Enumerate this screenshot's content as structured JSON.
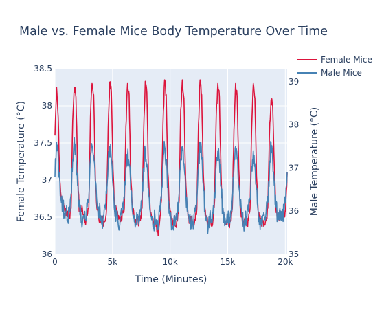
{
  "chart_data": {
    "type": "line",
    "title": "Male vs. Female Mice Body Temperature Over Time",
    "xlabel": "Time (Minutes)",
    "ylabel_left": "Female Temperature (°C)",
    "ylabel_right": "Male Temperature (°C)",
    "xlim": [
      0,
      20160
    ],
    "ylim_left": [
      36,
      38.5
    ],
    "ylim_right": [
      35,
      39.3
    ],
    "x_ticks": [
      {
        "value": 0,
        "label": "0"
      },
      {
        "value": 5000,
        "label": "5k"
      },
      {
        "value": 10000,
        "label": "10k"
      },
      {
        "value": 15000,
        "label": "15k"
      },
      {
        "value": 20000,
        "label": "20k"
      }
    ],
    "y_left_ticks": [
      {
        "value": 36,
        "label": "36"
      },
      {
        "value": 36.5,
        "label": "36.5"
      },
      {
        "value": 37,
        "label": "37"
      },
      {
        "value": 37.5,
        "label": "37.5"
      },
      {
        "value": 38,
        "label": "38"
      },
      {
        "value": 38.5,
        "label": "38.5"
      }
    ],
    "y_right_ticks": [
      {
        "value": 35,
        "label": "35"
      },
      {
        "value": 36,
        "label": "36"
      },
      {
        "value": 37,
        "label": "37"
      },
      {
        "value": 38,
        "label": "38"
      },
      {
        "value": 39,
        "label": "39"
      }
    ],
    "grid": true,
    "legend_position": "top-right",
    "series": [
      {
        "name": "Female Mice",
        "axis": "left",
        "color": "#dc143c",
        "x": [
          0,
          140,
          280,
          420,
          560,
          700,
          840,
          980,
          1120,
          1260,
          1400,
          1540,
          1680,
          1820,
          1960,
          2100,
          2240,
          2380,
          2520,
          2660,
          2800,
          2940,
          3080,
          3220,
          3360,
          3500,
          3640,
          3780,
          3920,
          4060,
          4200,
          4340,
          4480,
          4620,
          4760,
          4900,
          5040,
          5180,
          5320,
          5460,
          5600,
          5740,
          5880,
          6020,
          6160,
          6300,
          6440,
          6580,
          6720,
          6860,
          7000,
          7140,
          7280,
          7420,
          7560,
          7700,
          7840,
          7980,
          8120,
          8260,
          8400,
          8540,
          8680,
          8820,
          8960,
          9100,
          9240,
          9380,
          9520,
          9660,
          9800,
          9940,
          10080,
          10220,
          10360,
          10500,
          10640,
          10780,
          10920,
          11060,
          11200,
          11340,
          11480,
          11620,
          11760,
          11900,
          12040,
          12180,
          12320,
          12460,
          12600,
          12740,
          12880,
          13020,
          13160,
          13300,
          13440,
          13580,
          13720,
          13860,
          14000,
          14140,
          14280,
          14420,
          14560,
          14700,
          14840,
          14980,
          15120,
          15260,
          15400,
          15540,
          15680,
          15820,
          15960,
          16100,
          16240,
          16380,
          16520,
          16660,
          16800,
          16940,
          17080,
          17220,
          17360,
          17500,
          17640,
          17780,
          17920,
          18060,
          18200,
          18340,
          18480,
          18620,
          18760,
          18900,
          19040,
          19180,
          19320,
          19460,
          19600,
          19740,
          19880,
          20020,
          20160
        ],
        "values": [
          37.6,
          38.25,
          37.85,
          37.0,
          36.72,
          36.72,
          36.62,
          36.52,
          36.58,
          36.48,
          36.62,
          37.8,
          38.25,
          38.12,
          37.22,
          36.58,
          36.62,
          36.62,
          36.52,
          36.4,
          36.52,
          36.62,
          37.85,
          38.3,
          38.15,
          37.08,
          36.62,
          36.55,
          36.42,
          36.5,
          36.38,
          36.45,
          36.62,
          37.7,
          38.32,
          38.18,
          37.15,
          36.58,
          36.62,
          36.52,
          36.48,
          36.46,
          36.56,
          36.62,
          37.72,
          38.3,
          38.15,
          37.05,
          36.62,
          36.52,
          36.4,
          36.5,
          36.38,
          36.46,
          36.62,
          37.65,
          38.33,
          38.18,
          37.05,
          36.62,
          36.5,
          36.4,
          36.5,
          36.38,
          36.25,
          36.46,
          36.72,
          37.75,
          38.35,
          38.15,
          37.1,
          36.62,
          36.5,
          36.4,
          36.5,
          36.38,
          36.46,
          36.72,
          37.95,
          38.35,
          38.1,
          37.05,
          36.62,
          36.5,
          36.4,
          36.5,
          36.38,
          36.46,
          36.62,
          37.75,
          38.35,
          38.15,
          37.1,
          36.62,
          36.5,
          36.4,
          36.5,
          36.38,
          36.46,
          36.72,
          37.85,
          38.3,
          38.12,
          37.1,
          36.58,
          36.5,
          36.4,
          36.5,
          36.38,
          36.46,
          36.62,
          37.68,
          38.3,
          38.12,
          37.15,
          36.58,
          36.5,
          36.4,
          36.5,
          36.38,
          36.46,
          36.62,
          37.7,
          38.3,
          38.1,
          37.05,
          36.58,
          36.5,
          36.4,
          36.46,
          36.4,
          36.46,
          36.62,
          37.6,
          38.08,
          38.0,
          37.2,
          36.62,
          36.5,
          36.46,
          36.58,
          36.48,
          36.52,
          36.58,
          37.1
        ]
      },
      {
        "name": "Male Mice",
        "axis": "right",
        "color": "#4682b4",
        "x": [
          0,
          140,
          280,
          420,
          560,
          700,
          840,
          980,
          1120,
          1260,
          1400,
          1540,
          1680,
          1820,
          1960,
          2100,
          2240,
          2380,
          2520,
          2660,
          2800,
          2940,
          3080,
          3220,
          3360,
          3500,
          3640,
          3780,
          3920,
          4060,
          4200,
          4340,
          4480,
          4620,
          4760,
          4900,
          5040,
          5180,
          5320,
          5460,
          5600,
          5740,
          5880,
          6020,
          6160,
          6300,
          6440,
          6580,
          6720,
          6860,
          7000,
          7140,
          7280,
          7420,
          7560,
          7700,
          7840,
          7980,
          8120,
          8260,
          8400,
          8540,
          8680,
          8820,
          8960,
          9100,
          9240,
          9380,
          9520,
          9660,
          9800,
          9940,
          10080,
          10220,
          10360,
          10500,
          10640,
          10780,
          10920,
          11060,
          11200,
          11340,
          11480,
          11620,
          11760,
          11900,
          12040,
          12180,
          12320,
          12460,
          12600,
          12740,
          12880,
          13020,
          13160,
          13300,
          13440,
          13580,
          13720,
          13860,
          14000,
          14140,
          14280,
          14420,
          14560,
          14700,
          14840,
          14980,
          15120,
          15260,
          15400,
          15540,
          15680,
          15820,
          15960,
          16100,
          16240,
          16380,
          16520,
          16660,
          16800,
          16940,
          17080,
          17220,
          17360,
          17500,
          17640,
          17780,
          17920,
          18060,
          18200,
          18340,
          18480,
          18620,
          18760,
          18900,
          19040,
          19180,
          19320,
          19460,
          19600,
          19740,
          19880,
          20020,
          20160
        ],
        "values": [
          36.8,
          37.6,
          37.3,
          36.7,
          36.2,
          36.1,
          35.9,
          36.0,
          35.8,
          36.1,
          36.4,
          37.2,
          37.7,
          37.3,
          36.6,
          36.1,
          36.0,
          35.7,
          35.9,
          35.8,
          36.1,
          36.3,
          37.2,
          37.5,
          37.3,
          36.7,
          36.2,
          35.9,
          36.0,
          35.7,
          35.9,
          36.1,
          36.4,
          37.1,
          37.5,
          37.2,
          36.6,
          36.0,
          35.9,
          35.8,
          35.6,
          36.0,
          36.1,
          36.3,
          37.0,
          37.3,
          37.1,
          36.5,
          36.0,
          35.9,
          35.7,
          35.9,
          35.7,
          36.0,
          36.3,
          37.0,
          37.4,
          37.1,
          36.5,
          36.0,
          35.8,
          35.6,
          35.9,
          35.8,
          35.6,
          36.0,
          36.3,
          37.1,
          37.5,
          37.2,
          36.6,
          36.0,
          35.8,
          35.6,
          35.9,
          35.8,
          36.0,
          36.4,
          37.2,
          37.4,
          37.1,
          36.5,
          36.0,
          35.9,
          35.7,
          35.9,
          35.7,
          36.0,
          36.3,
          37.0,
          37.6,
          37.2,
          36.6,
          36.0,
          35.8,
          35.6,
          35.9,
          35.8,
          36.0,
          36.3,
          37.1,
          37.4,
          37.2,
          36.6,
          36.0,
          35.8,
          35.7,
          35.9,
          35.8,
          36.0,
          36.3,
          37.0,
          37.5,
          37.2,
          36.6,
          36.1,
          35.9,
          35.7,
          35.9,
          35.8,
          36.0,
          36.3,
          37.0,
          37.4,
          37.1,
          36.5,
          36.0,
          35.8,
          35.7,
          35.9,
          35.8,
          36.0,
          36.2,
          36.9,
          37.6,
          37.2,
          36.6,
          36.1,
          35.9,
          35.8,
          36.0,
          35.8,
          36.1,
          36.2,
          36.9
        ]
      }
    ]
  }
}
